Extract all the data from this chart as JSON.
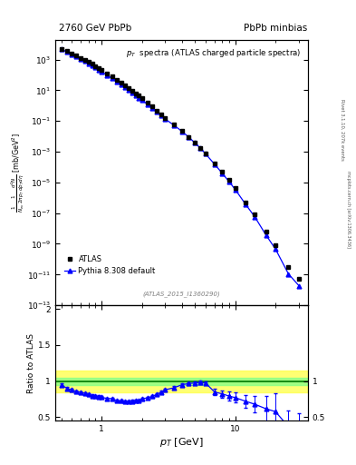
{
  "title_left": "2760 GeV PbPb",
  "title_right": "PbPb minbias",
  "plot_title": "$p_T$  spectra (ATLAS charged particle spectra)",
  "ylabel_main": "$\\frac{1}{N_{ev}}\\frac{1}{2\\pi p_T}\\frac{d^2N}{dp_T d\\eta}$ [mb/GeV$^2$]",
  "ylabel_ratio": "Ratio to ATLAS",
  "xlabel": "$p_T$ [GeV]",
  "ref_label": "(ATLAS_2015_I1360290)",
  "atlas_pt": [
    0.5,
    0.55,
    0.6,
    0.65,
    0.7,
    0.75,
    0.8,
    0.85,
    0.9,
    0.95,
    1.0,
    1.1,
    1.2,
    1.3,
    1.4,
    1.5,
    1.6,
    1.7,
    1.8,
    1.9,
    2.0,
    2.2,
    2.4,
    2.6,
    2.8,
    3.0,
    3.5,
    4.0,
    4.5,
    5.0,
    5.5,
    6.0,
    7.0,
    8.0,
    9.0,
    10.0,
    12.0,
    14.0,
    17.0,
    20.0,
    25.0,
    30.0
  ],
  "atlas_y": [
    5000,
    3500,
    2500,
    1800,
    1300,
    950,
    700,
    520,
    380,
    285,
    210,
    125,
    78,
    50,
    32,
    21,
    14,
    9.5,
    6.5,
    4.4,
    3.1,
    1.6,
    0.85,
    0.46,
    0.26,
    0.15,
    0.056,
    0.022,
    0.009,
    0.0038,
    0.0017,
    0.00075,
    0.00018,
    4.8e-05,
    1.4e-05,
    4.5e-06,
    5e-07,
    8.5e-08,
    6e-09,
    8e-10,
    3e-11,
    5e-12
  ],
  "pythia_pt": [
    0.5,
    0.55,
    0.6,
    0.65,
    0.7,
    0.75,
    0.8,
    0.85,
    0.9,
    0.95,
    1.0,
    1.1,
    1.2,
    1.3,
    1.4,
    1.5,
    1.6,
    1.7,
    1.8,
    1.9,
    2.0,
    2.2,
    2.4,
    2.6,
    2.8,
    3.0,
    3.5,
    4.0,
    4.5,
    5.0,
    5.5,
    6.0,
    7.0,
    8.0,
    9.0,
    10.0,
    12.0,
    14.0,
    17.0,
    20.0,
    25.0,
    30.0
  ],
  "pythia_y": [
    4750,
    3150,
    2190,
    1540,
    1098,
    790,
    570,
    416,
    300,
    224,
    163,
    95,
    59,
    36.5,
    23.2,
    15.1,
    10.1,
    6.88,
    4.75,
    3.23,
    2.33,
    1.23,
    0.671,
    0.377,
    0.221,
    0.132,
    0.0509,
    0.0209,
    0.0087,
    0.0037,
    0.00167,
    0.00073,
    0.000153,
    3.95e-05,
    1.11e-05,
    3.47e-06,
    3.6e-07,
    5.78e-08,
    3.7e-09,
    4.62e-10,
    1.11e-11,
    1.86e-12
  ],
  "ratio_pt": [
    0.5,
    0.55,
    0.6,
    0.65,
    0.7,
    0.75,
    0.8,
    0.85,
    0.9,
    0.95,
    1.0,
    1.1,
    1.2,
    1.3,
    1.4,
    1.5,
    1.6,
    1.7,
    1.8,
    1.9,
    2.0,
    2.2,
    2.4,
    2.6,
    2.8,
    3.0,
    3.5,
    4.0,
    4.5,
    5.0,
    5.5,
    6.0,
    7.0,
    8.0,
    9.0,
    10.0,
    12.0,
    14.0,
    17.0,
    20.0,
    25.0,
    30.0
  ],
  "ratio_y": [
    0.95,
    0.9,
    0.876,
    0.856,
    0.845,
    0.832,
    0.815,
    0.8,
    0.789,
    0.786,
    0.776,
    0.76,
    0.757,
    0.73,
    0.725,
    0.719,
    0.721,
    0.724,
    0.731,
    0.734,
    0.752,
    0.769,
    0.789,
    0.819,
    0.85,
    0.88,
    0.909,
    0.95,
    0.967,
    0.974,
    0.982,
    0.973,
    0.85,
    0.823,
    0.793,
    0.771,
    0.72,
    0.68,
    0.617,
    0.577,
    0.37,
    0.372
  ],
  "ratio_yerr": [
    0.015,
    0.015,
    0.015,
    0.015,
    0.015,
    0.015,
    0.015,
    0.015,
    0.015,
    0.015,
    0.015,
    0.015,
    0.015,
    0.015,
    0.015,
    0.015,
    0.015,
    0.015,
    0.015,
    0.015,
    0.015,
    0.015,
    0.015,
    0.015,
    0.015,
    0.015,
    0.02,
    0.02,
    0.02,
    0.02,
    0.02,
    0.02,
    0.04,
    0.05,
    0.06,
    0.07,
    0.09,
    0.11,
    0.18,
    0.25,
    0.22,
    0.18
  ],
  "band_green_lo": 0.95,
  "band_green_hi": 1.05,
  "band_yellow_lo": 0.85,
  "band_yellow_hi": 1.15,
  "xlim": [
    0.45,
    35.0
  ],
  "ylim_main": [
    1e-13,
    20000.0
  ],
  "ylim_ratio": [
    0.45,
    2.05
  ],
  "color_atlas": "black",
  "color_pythia": "blue",
  "marker_atlas": "s",
  "marker_pythia": "^",
  "yticks_ratio_left": [
    0.5,
    1.0,
    1.5,
    2.0
  ],
  "yticks_ratio_right": [
    0.5,
    1.0
  ],
  "ytick_labels_ratio_left": [
    "0.5",
    "1",
    "1.5",
    "2"
  ],
  "ytick_labels_ratio_right": [
    "0.5",
    "1"
  ]
}
